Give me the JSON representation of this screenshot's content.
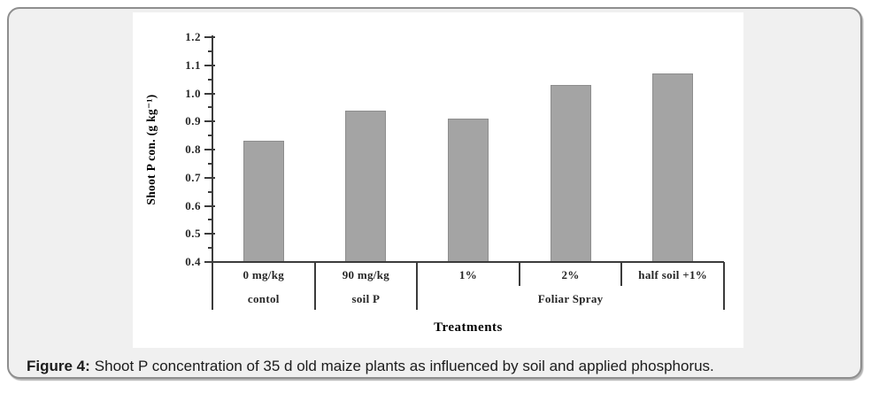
{
  "figure": {
    "card_bg": "#f0f0f0",
    "card_border": "#8e8e8e",
    "caption_label": "Figure 4:",
    "caption_text": "Shoot P concentration of 35 d old maize plants as influenced by soil and applied phosphorus."
  },
  "chart_data": {
    "type": "bar",
    "title": "",
    "xlabel": "Treatments",
    "ylabel": "Shoot P con. (g kg⁻¹)",
    "categories": [
      "0 mg/kg",
      "90 mg/kg",
      "1%",
      "2%",
      "half soil +1%"
    ],
    "category_groups": [
      {
        "label": "contol",
        "span": 1
      },
      {
        "label": "soil P",
        "span": 1
      },
      {
        "label": "Foliar Spray",
        "span": 3
      }
    ],
    "values": [
      0.83,
      0.94,
      0.91,
      1.03,
      1.07
    ],
    "ylim": [
      0.4,
      1.2
    ],
    "ytick_labels": [
      "0.4",
      "0.5",
      "0.6",
      "0.7",
      "0.8",
      "0.9",
      "1.0",
      "1.1",
      "1.2"
    ],
    "minor_ticks_between_majors": 1,
    "grid": false,
    "legend": null,
    "colors": {
      "bar_fill": "#a4a4a4",
      "bar_border": "#8d8d8d",
      "axis": "#3b3b3b",
      "text": "#262626"
    }
  }
}
